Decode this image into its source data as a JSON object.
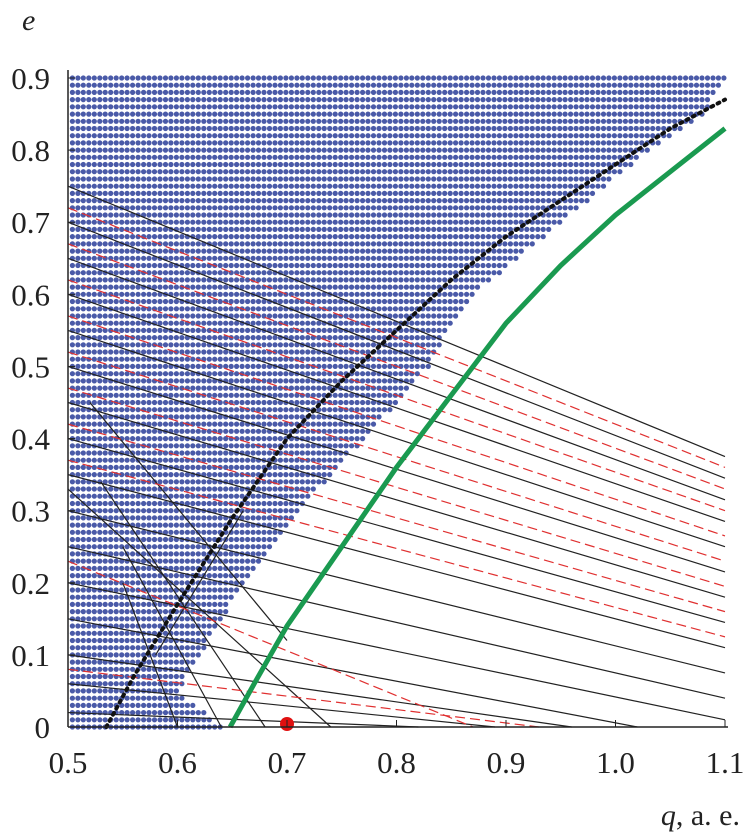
{
  "chart_data": {
    "type": "scatter",
    "title": "",
    "ylabel": "e",
    "xlabel_italic": "q",
    "xlabel_rest": ", a. e.",
    "xlim": [
      0.5,
      1.1
    ],
    "ylim": [
      0,
      0.9
    ],
    "xticks": [
      "0.5",
      "0.6",
      "0.7",
      "0.8",
      "0.9",
      "1.0",
      "1.1"
    ],
    "yticks": [
      "0",
      "0.1",
      "0.2",
      "0.3",
      "0.4",
      "0.5",
      "0.6",
      "0.7",
      "0.8",
      "0.9"
    ],
    "grid": false,
    "colors": {
      "dots": "#4a5aa8",
      "black_curve": "#111111",
      "green_curve": "#1a9a50",
      "red_point": "#e01010",
      "red_lines": "#e03030",
      "black_lines": "#222222"
    },
    "dot_region": {
      "q_step": 0.005,
      "e_step": 0.01,
      "max_q_by_e": [
        [
          0,
          0.64
        ],
        [
          0.05,
          0.6
        ],
        [
          0.1,
          0.62
        ],
        [
          0.2,
          0.66
        ],
        [
          0.3,
          0.71
        ],
        [
          0.4,
          0.77
        ],
        [
          0.5,
          0.83
        ],
        [
          0.55,
          0.845
        ],
        [
          0.6,
          0.87
        ],
        [
          0.7,
          0.95
        ],
        [
          0.8,
          1.03
        ],
        [
          0.85,
          1.08
        ],
        [
          0.9,
          1.1
        ]
      ]
    },
    "black_dotted_curve": [
      [
        0.535,
        0
      ],
      [
        0.56,
        0.07
      ],
      [
        0.6,
        0.17
      ],
      [
        0.65,
        0.29
      ],
      [
        0.7,
        0.4
      ],
      [
        0.75,
        0.48
      ],
      [
        0.8,
        0.55
      ],
      [
        0.85,
        0.62
      ],
      [
        0.9,
        0.68
      ],
      [
        0.95,
        0.73
      ],
      [
        1.0,
        0.78
      ],
      [
        1.05,
        0.83
      ],
      [
        1.1,
        0.87
      ]
    ],
    "green_curve": [
      [
        0.648,
        0
      ],
      [
        0.67,
        0.06
      ],
      [
        0.7,
        0.14
      ],
      [
        0.75,
        0.25
      ],
      [
        0.8,
        0.36
      ],
      [
        0.85,
        0.46
      ],
      [
        0.9,
        0.56
      ],
      [
        0.95,
        0.64
      ],
      [
        1.0,
        0.71
      ],
      [
        1.05,
        0.77
      ],
      [
        1.1,
        0.83
      ]
    ],
    "red_point": [
      0.7,
      0
    ],
    "black_lines": [
      [
        [
          0.5,
          0.75
        ],
        [
          1.1,
          0.375
        ]
      ],
      [
        [
          0.5,
          0.7
        ],
        [
          1.1,
          0.345
        ]
      ],
      [
        [
          0.5,
          0.65
        ],
        [
          1.1,
          0.315
        ]
      ],
      [
        [
          0.5,
          0.6
        ],
        [
          1.1,
          0.285
        ]
      ],
      [
        [
          0.5,
          0.55
        ],
        [
          1.1,
          0.25
        ]
      ],
      [
        [
          0.5,
          0.5
        ],
        [
          1.1,
          0.215
        ]
      ],
      [
        [
          0.5,
          0.45
        ],
        [
          1.1,
          0.18
        ]
      ],
      [
        [
          0.5,
          0.4
        ],
        [
          1.1,
          0.145
        ]
      ],
      [
        [
          0.5,
          0.35
        ],
        [
          1.1,
          0.11
        ]
      ],
      [
        [
          0.5,
          0.3
        ],
        [
          1.1,
          0.075
        ]
      ],
      [
        [
          0.5,
          0.25
        ],
        [
          1.1,
          0.04
        ]
      ],
      [
        [
          0.5,
          0.2
        ],
        [
          1.1,
          0.01
        ]
      ],
      [
        [
          0.5,
          0.15
        ],
        [
          1.02,
          0
        ]
      ],
      [
        [
          0.5,
          0.1
        ],
        [
          0.96,
          0
        ]
      ],
      [
        [
          0.5,
          0.06
        ],
        [
          0.89,
          0
        ]
      ],
      [
        [
          0.5,
          0.02
        ],
        [
          0.82,
          0
        ]
      ],
      [
        [
          0.5,
          0.33
        ],
        [
          0.74,
          0
        ]
      ],
      [
        [
          0.53,
          0.34
        ],
        [
          0.68,
          0
        ]
      ],
      [
        [
          0.55,
          0.25
        ],
        [
          0.64,
          0
        ]
      ],
      [
        [
          0.52,
          0.45
        ],
        [
          0.7,
          0.12
        ]
      ],
      [
        [
          0.58,
          0.1
        ],
        [
          0.66,
          0.3
        ]
      ],
      [
        [
          0.6,
          0
        ],
        [
          0.55,
          0.2
        ]
      ]
    ],
    "red_dashed_lines": [
      [
        [
          0.5,
          0.72
        ],
        [
          1.1,
          0.36
        ]
      ],
      [
        [
          0.5,
          0.67
        ],
        [
          1.1,
          0.33
        ]
      ],
      [
        [
          0.5,
          0.62
        ],
        [
          1.1,
          0.3
        ]
      ],
      [
        [
          0.5,
          0.57
        ],
        [
          1.1,
          0.265
        ]
      ],
      [
        [
          0.5,
          0.52
        ],
        [
          1.1,
          0.23
        ]
      ],
      [
        [
          0.5,
          0.47
        ],
        [
          1.1,
          0.195
        ]
      ],
      [
        [
          0.5,
          0.42
        ],
        [
          1.1,
          0.16
        ]
      ],
      [
        [
          0.5,
          0.37
        ],
        [
          1.1,
          0.125
        ]
      ],
      [
        [
          0.5,
          0.23
        ],
        [
          0.87,
          0
        ]
      ],
      [
        [
          0.5,
          0.08
        ],
        [
          0.93,
          0
        ]
      ]
    ]
  }
}
